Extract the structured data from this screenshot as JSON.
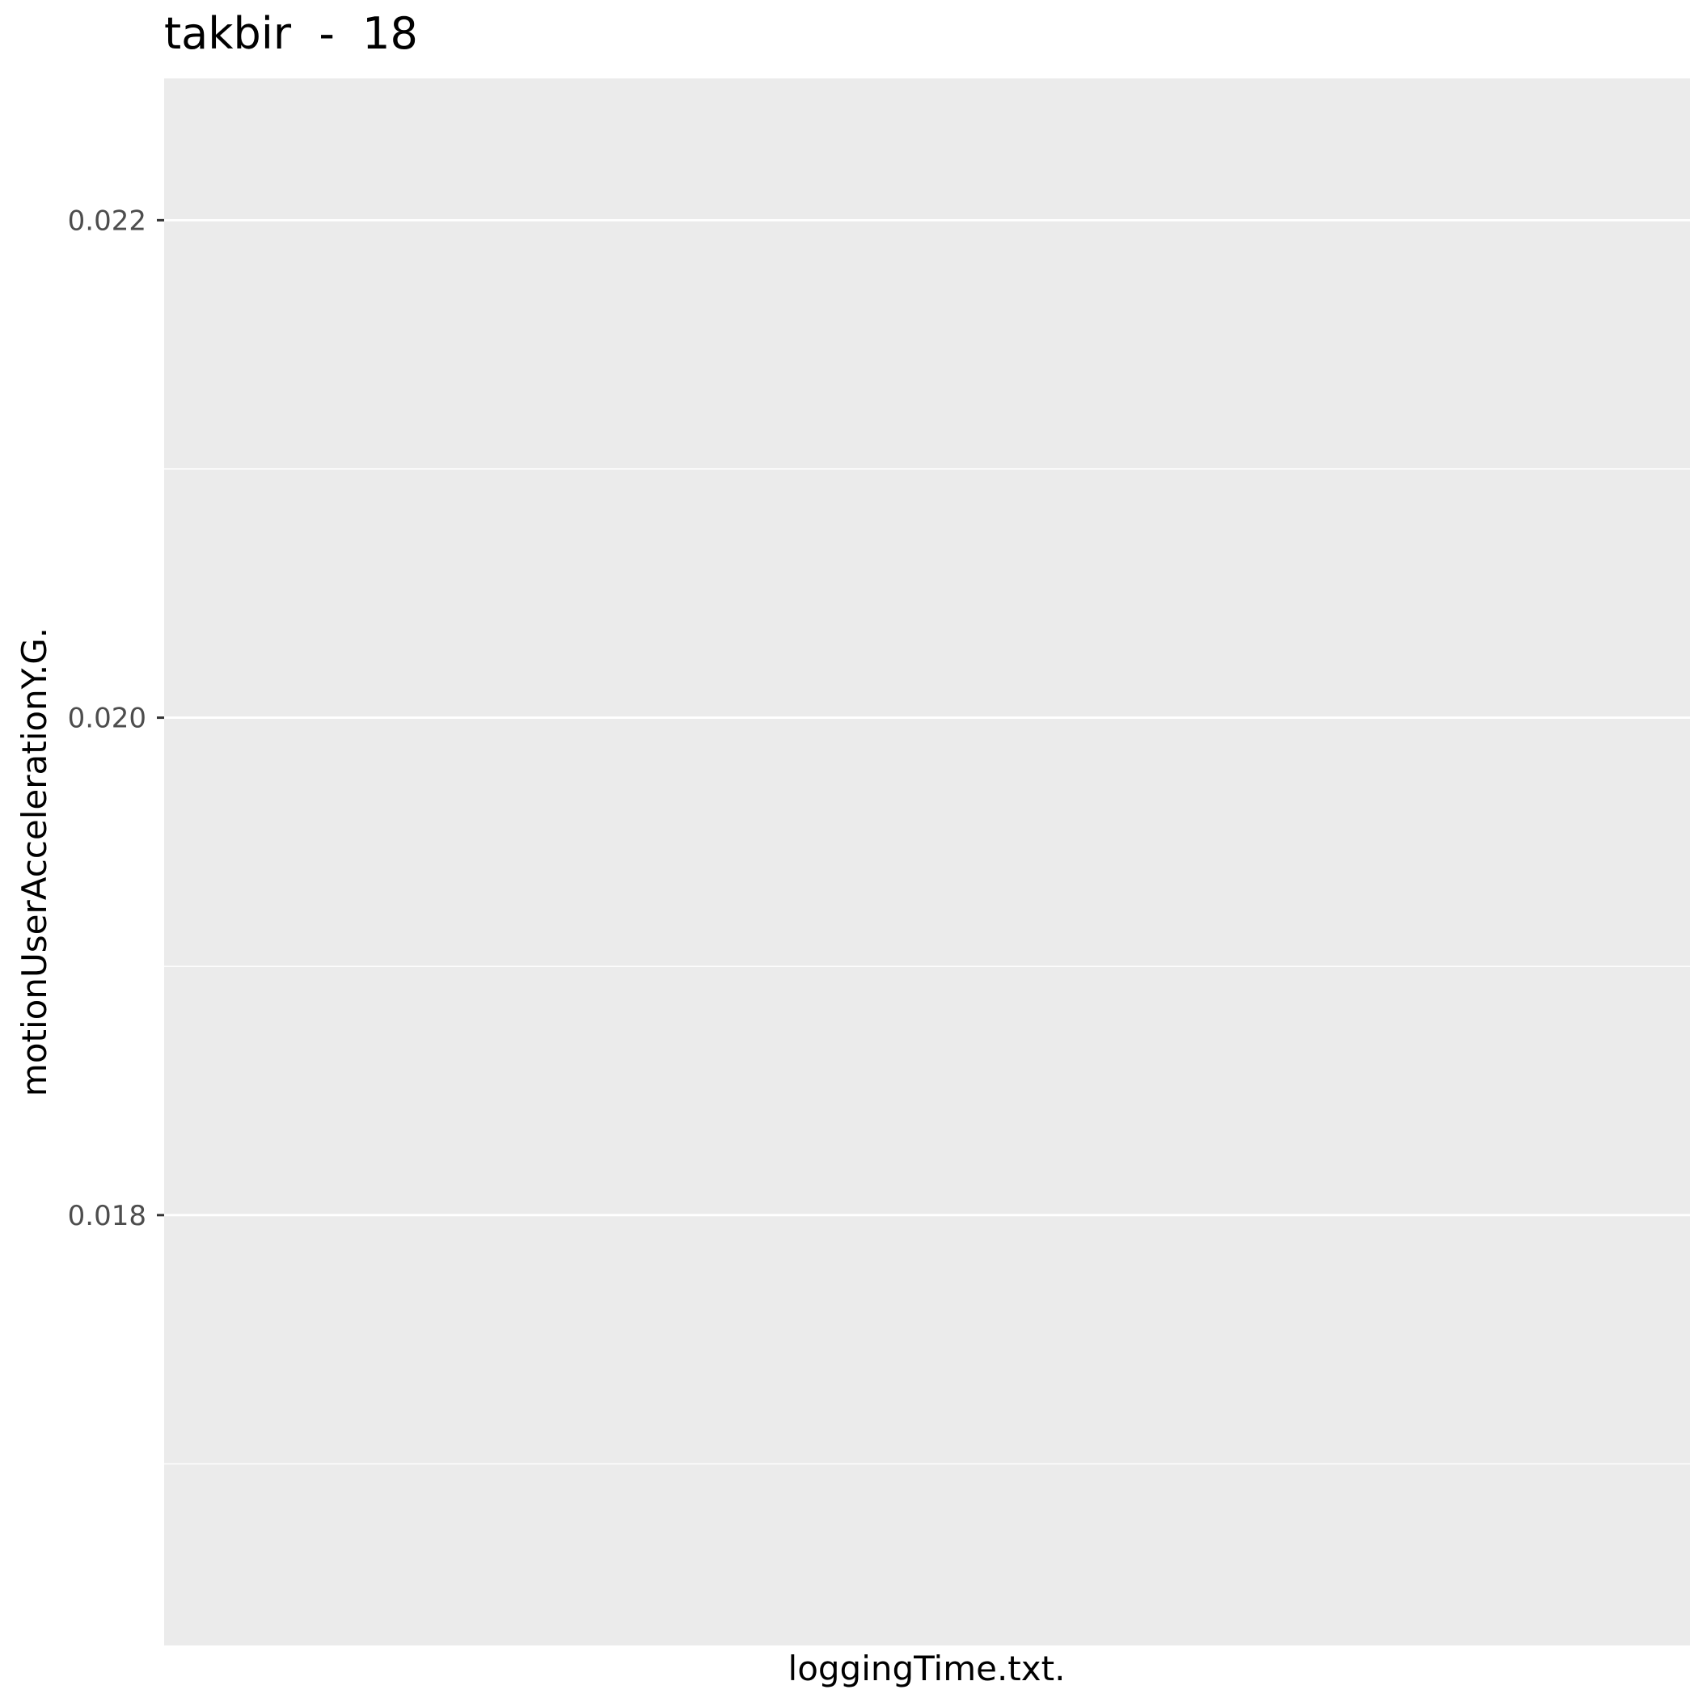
{
  "chart_data": {
    "type": "line",
    "title": "takbir  -  18",
    "xlabel": "loggingTime.txt.",
    "ylabel": "motionUserAccelerationY.G.",
    "x": [],
    "series": [
      {
        "values": []
      }
    ],
    "ylim": [
      0.01627,
      0.02257
    ],
    "y_ticks": [
      {
        "value": 0.018,
        "label": "0.018"
      },
      {
        "value": 0.02,
        "label": "0.020"
      },
      {
        "value": 0.022,
        "label": "0.022"
      }
    ],
    "y_minor_ticks": [
      0.017,
      0.019,
      0.021
    ],
    "grid": true,
    "legend": "none",
    "colors": {
      "panel_background": "#ebebeb",
      "grid_major": "#ffffff",
      "grid_minor": "#ffffff",
      "tick_mark": "#333333",
      "tick_label": "#4d4d4d"
    }
  }
}
